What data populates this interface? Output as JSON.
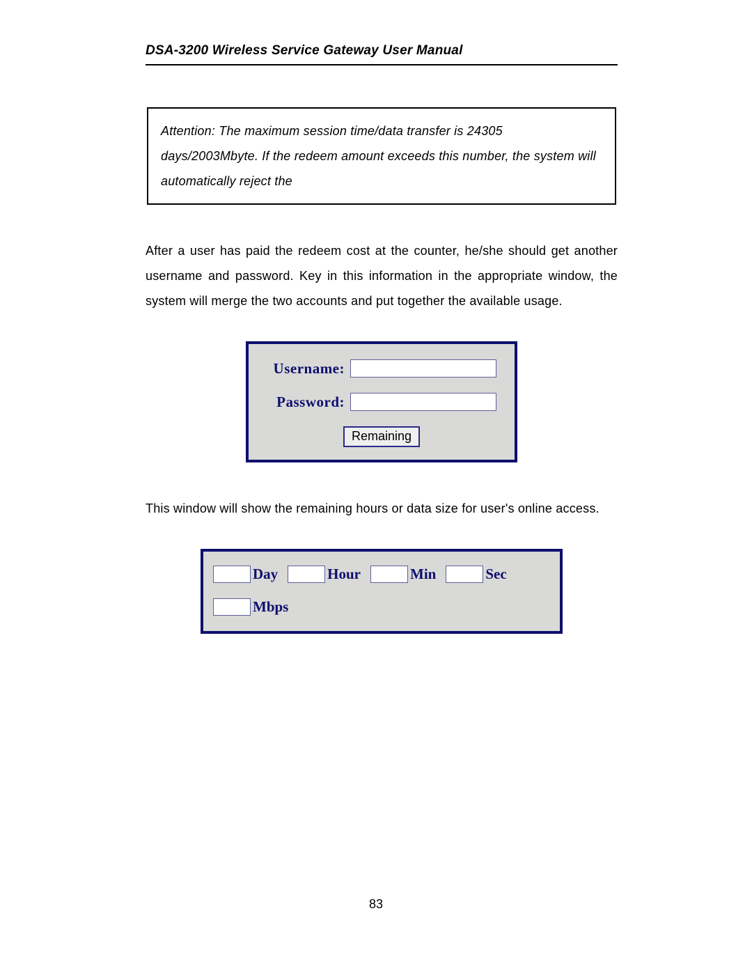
{
  "header": {
    "title": "DSA-3200 Wireless Service Gateway User Manual"
  },
  "attention": {
    "text": "Attention: The maximum session time/data transfer is 24305 days/2003Mbyte. If the redeem amount exceeds this number, the system will automatically reject the"
  },
  "para1": "After a user has paid the redeem cost at the counter, he/she should get another username and password.  Key in this information in the appropriate window, the system will merge the two accounts and put together the available usage.",
  "login": {
    "username_label": "Username:",
    "password_label": "Password:",
    "remaining_button": "Remaining",
    "colors": {
      "panel_bg": "#d9d9d7",
      "panel_border": "#0f0f6e",
      "label_color": "#0e0e6f",
      "input_bg": "#ffffff",
      "input_border": "#5f5f99",
      "button_bg": "#efefef",
      "button_border": "#2b2b8b"
    }
  },
  "para2": "This window will show the remaining hours or data size for user's online access.",
  "time_panel": {
    "day_label": "Day",
    "hour_label": "Hour",
    "min_label": "Min",
    "sec_label": "Sec",
    "mbps_label": "Mbps",
    "colors": {
      "panel_bg": "#d9d9d7",
      "panel_border": "#0f0f6e",
      "label_color": "#0e0e6f",
      "input_bg": "#ffffff",
      "input_border": "#5f5f99"
    }
  },
  "page_number": "83"
}
